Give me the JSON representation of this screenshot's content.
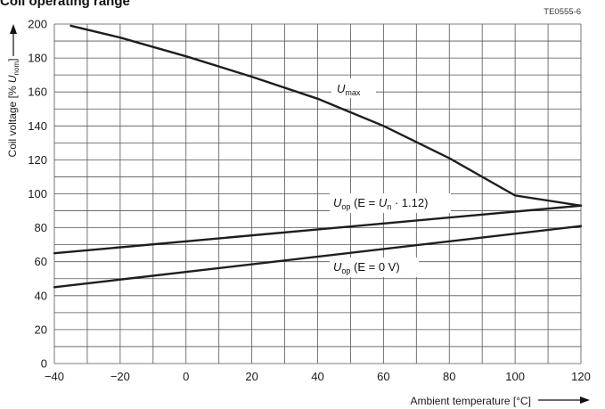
{
  "chart_data": {
    "type": "line",
    "title": "Coil operating range",
    "figure_code": "TE0555-6",
    "xlabel": "Ambient temperature [°C]",
    "ylabel": {
      "prefix": "Coil voltage [% ",
      "var": "U",
      "sub": "nom",
      "suffix": "]"
    },
    "xlim": [
      -40,
      120
    ],
    "ylim": [
      0,
      200
    ],
    "x_ticks": [
      -40,
      -20,
      0,
      20,
      40,
      60,
      80,
      100,
      120
    ],
    "y_ticks": [
      0,
      20,
      40,
      60,
      80,
      100,
      120,
      140,
      160,
      180,
      200
    ],
    "x_tick_labels": [
      "−40",
      "−20",
      "0",
      "20",
      "40",
      "60",
      "80",
      "100",
      "120"
    ],
    "x_grid_step": 10,
    "y_grid_step": 10,
    "grid": true,
    "series": [
      {
        "name": "U_max",
        "x": [
          -35,
          -20,
          0,
          20,
          40,
          60,
          80,
          100,
          120
        ],
        "y": [
          199,
          192,
          181,
          169,
          156,
          140,
          121,
          99,
          93
        ]
      },
      {
        "name": "U_op (E = U_n · 1.12)",
        "x": [
          -40,
          120
        ],
        "y": [
          65,
          93
        ]
      },
      {
        "name": "U_op (E = 0 V)",
        "x": [
          -40,
          120
        ],
        "y": [
          45,
          81
        ]
      }
    ],
    "annotations": {
      "umax": {
        "var": "U",
        "sub": "max"
      },
      "uop1": {
        "var": "U",
        "sub": "op",
        "mid": " (E = ",
        "var2": "U",
        "sub2": "n",
        "tail": " · 1.12)"
      },
      "uop2": {
        "var": "U",
        "sub": "op",
        "tail": " (E = 0 V)"
      }
    }
  }
}
